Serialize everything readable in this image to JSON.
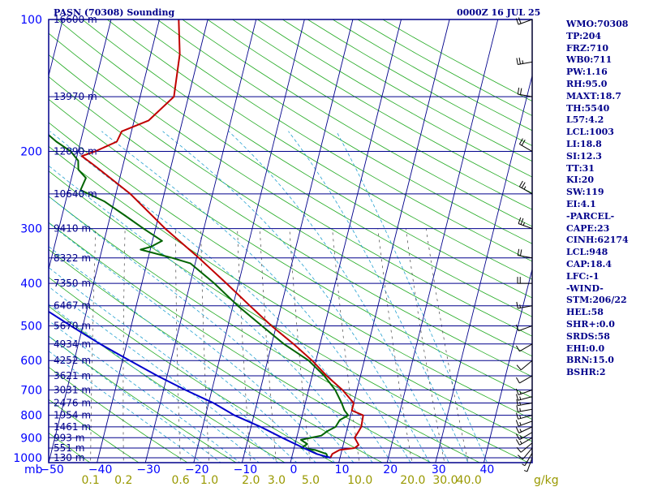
{
  "header": {
    "station_title": "PASN (70308) Sounding",
    "time_title": "0000Z 16 JUL 25"
  },
  "indices": [
    "WMO:70308",
    "TP:204",
    "FRZ:710",
    "WB0:711",
    "PW:1.16",
    "RH:95.0",
    "MAXT:18.7",
    "TH:5540",
    "L57:4.2",
    "LCL:1003",
    "LI:18.8",
    "SI:12.3",
    "TT:31",
    "KI:20",
    "SW:119",
    "EI:4.1",
    "-PARCEL-",
    "CAPE:23",
    "CINH:62174",
    "LCL:948",
    "CAP:18.4",
    "LFC:-1",
    "-WIND-",
    "STM:206/22",
    "HEL:58",
    "SHR+:0.0",
    "SRDS:58",
    "EHI:0.0",
    "BRN:15.0",
    "BSHR:2"
  ],
  "colors": {
    "background": "#ffffff",
    "frame": "#00008b",
    "isobar": "#00008b",
    "isotherm": "#00008b",
    "dry_adiabat": "#22aa22",
    "moist_adiabat": "#22a0d0",
    "mixing_ratio": "#444444",
    "temperature": "#c00000",
    "dewpoint": "#006400",
    "parcel": "#0000cd",
    "wind_barb": "#000000",
    "pressure_label": "#0000ff",
    "height_label": "#00008b",
    "mixing_label": "#999900"
  },
  "chart_data": {
    "type": "skew-t",
    "axes": {
      "pressure_unit": "mb",
      "pressure_ticks": [
        100,
        150,
        200,
        250,
        300,
        400,
        500,
        600,
        700,
        800,
        900,
        1000
      ],
      "pressure_tick_labels": [
        "100",
        "200",
        "300",
        "400",
        "500",
        "600",
        "700",
        "800",
        "900",
        "1000"
      ],
      "temperature_ticks": [
        -50,
        -40,
        -30,
        -20,
        -10,
        0,
        10,
        20,
        30,
        40
      ],
      "temperature_tick_labels": [
        "−50",
        "−40",
        "−30",
        "−20",
        "−10",
        "0",
        "10",
        "20",
        "30",
        "40"
      ],
      "mixing_ratio_labels": [
        "0.1",
        "0.2",
        "0.6",
        "1.0",
        "2.0",
        "3.0",
        "5.0",
        "10.0",
        "20.0",
        "30.0",
        "40.0"
      ],
      "mixing_ratio_unit": "g/kg",
      "pressure_range": [
        100,
        1050
      ],
      "temperature_range_at_surface": [
        -50,
        50
      ]
    },
    "height_labels": [
      {
        "p": 100,
        "label": "16600 m"
      },
      {
        "p": 150,
        "label": "13970 m"
      },
      {
        "p": 200,
        "label": "12090 m"
      },
      {
        "p": 250,
        "label": "10640 m"
      },
      {
        "p": 300,
        "label": "9410 m"
      },
      {
        "p": 350,
        "label": "8322 m"
      },
      {
        "p": 400,
        "label": "7350 m"
      },
      {
        "p": 450,
        "label": "6467 m"
      },
      {
        "p": 500,
        "label": "5670 m"
      },
      {
        "p": 550,
        "label": "4934 m"
      },
      {
        "p": 600,
        "label": "4252 m"
      },
      {
        "p": 650,
        "label": "3621 m"
      },
      {
        "p": 700,
        "label": "3031 m"
      },
      {
        "p": 750,
        "label": "2476 m"
      },
      {
        "p": 800,
        "label": "1954 m"
      },
      {
        "p": 850,
        "label": "1461 m"
      },
      {
        "p": 900,
        "label": "993 m"
      },
      {
        "p": 950,
        "label": "551 m"
      },
      {
        "p": 1000,
        "label": "130 m"
      }
    ],
    "series": [
      {
        "key": "temperature",
        "points": [
          [
            1000,
            8.0
          ],
          [
            980,
            8.2
          ],
          [
            960,
            9.5
          ],
          [
            950,
            12.5
          ],
          [
            935,
            13.2
          ],
          [
            900,
            12.0
          ],
          [
            870,
            12.5
          ],
          [
            850,
            12.8
          ],
          [
            800,
            12.6
          ],
          [
            780,
            10.0
          ],
          [
            750,
            10.0
          ],
          [
            700,
            7.0
          ],
          [
            650,
            3.0
          ],
          [
            600,
            -0.8
          ],
          [
            550,
            -5.5
          ],
          [
            500,
            -11.0
          ],
          [
            450,
            -16.5
          ],
          [
            400,
            -22.5
          ],
          [
            350,
            -29.5
          ],
          [
            300,
            -38.0
          ],
          [
            250,
            -47.0
          ],
          [
            215,
            -56.0
          ],
          [
            205,
            -59.0
          ],
          [
            200,
            -56.5
          ],
          [
            190,
            -52.5
          ],
          [
            180,
            -52.0
          ],
          [
            170,
            -47.0
          ],
          [
            150,
            -43.0
          ],
          [
            120,
            -44.0
          ],
          [
            100,
            -46.0
          ]
        ]
      },
      {
        "key": "dewpoint",
        "points": [
          [
            1000,
            7.5
          ],
          [
            980,
            7.0
          ],
          [
            960,
            4.5
          ],
          [
            950,
            1.5
          ],
          [
            930,
            2.5
          ],
          [
            910,
            1.0
          ],
          [
            890,
            5.0
          ],
          [
            870,
            6.0
          ],
          [
            850,
            7.5
          ],
          [
            820,
            8.0
          ],
          [
            800,
            9.5
          ],
          [
            780,
            8.5
          ],
          [
            750,
            7.5
          ],
          [
            700,
            5.5
          ],
          [
            650,
            2.5
          ],
          [
            600,
            -1.5
          ],
          [
            550,
            -7.5
          ],
          [
            500,
            -13.0
          ],
          [
            450,
            -19.0
          ],
          [
            400,
            -25.0
          ],
          [
            360,
            -31.0
          ],
          [
            350,
            -35.0
          ],
          [
            335,
            -42.0
          ],
          [
            330,
            -40.0
          ],
          [
            320,
            -38.0
          ],
          [
            300,
            -42.5
          ],
          [
            280,
            -47.0
          ],
          [
            260,
            -52.0
          ],
          [
            245,
            -57.5
          ],
          [
            230,
            -57.0
          ],
          [
            220,
            -59.0
          ],
          [
            210,
            -59.5
          ],
          [
            200,
            -61.5
          ],
          [
            190,
            -65.0
          ],
          [
            180,
            -68.0
          ],
          [
            170,
            -70.0
          ],
          [
            160,
            -74.0
          ],
          [
            150,
            -80.0
          ],
          [
            140,
            -80.0
          ],
          [
            120,
            -82.0
          ],
          [
            100,
            -85.0
          ]
        ]
      },
      {
        "key": "parcel",
        "points": [
          [
            1000,
            8.0
          ],
          [
            980,
            5.0
          ],
          [
            950,
            2.0
          ],
          [
            900,
            -3.0
          ],
          [
            850,
            -8.0
          ],
          [
            800,
            -14.0
          ],
          [
            750,
            -19.0
          ],
          [
            700,
            -25.5
          ],
          [
            650,
            -32.0
          ],
          [
            600,
            -38.5
          ],
          [
            550,
            -45.5
          ],
          [
            500,
            -52.5
          ],
          [
            450,
            -60.0
          ],
          [
            400,
            -68.0
          ],
          [
            350,
            -77.0
          ],
          [
            300,
            -86.0
          ],
          [
            250,
            -96.0
          ],
          [
            200,
            -107.0
          ],
          [
            150,
            -122.0
          ],
          [
            130,
            -128.0
          ]
        ]
      }
    ],
    "wind_barbs": [
      {
        "p": 1000,
        "dir": 200,
        "spd": 5
      },
      {
        "p": 975,
        "dir": 210,
        "spd": 8
      },
      {
        "p": 950,
        "dir": 220,
        "spd": 10
      },
      {
        "p": 925,
        "dir": 230,
        "spd": 12
      },
      {
        "p": 900,
        "dir": 240,
        "spd": 15
      },
      {
        "p": 875,
        "dir": 240,
        "spd": 15
      },
      {
        "p": 850,
        "dir": 245,
        "spd": 15
      },
      {
        "p": 825,
        "dir": 250,
        "spd": 15
      },
      {
        "p": 800,
        "dir": 255,
        "spd": 15
      },
      {
        "p": 775,
        "dir": 260,
        "spd": 15
      },
      {
        "p": 750,
        "dir": 260,
        "spd": 15
      },
      {
        "p": 725,
        "dir": 255,
        "spd": 15
      },
      {
        "p": 700,
        "dir": 250,
        "spd": 15
      },
      {
        "p": 650,
        "dir": 240,
        "spd": 10
      },
      {
        "p": 600,
        "dir": 230,
        "spd": 10
      },
      {
        "p": 550,
        "dir": 240,
        "spd": 10
      },
      {
        "p": 500,
        "dir": 250,
        "spd": 10
      },
      {
        "p": 450,
        "dir": 260,
        "spd": 15
      },
      {
        "p": 400,
        "dir": 270,
        "spd": 20
      },
      {
        "p": 350,
        "dir": 280,
        "spd": 20
      },
      {
        "p": 300,
        "dir": 290,
        "spd": 25
      },
      {
        "p": 250,
        "dir": 300,
        "spd": 25
      },
      {
        "p": 200,
        "dir": 300,
        "spd": 20
      },
      {
        "p": 150,
        "dir": 280,
        "spd": 20
      },
      {
        "p": 125,
        "dir": 260,
        "spd": 25
      },
      {
        "p": 100,
        "dir": 250,
        "spd": 20
      }
    ]
  }
}
